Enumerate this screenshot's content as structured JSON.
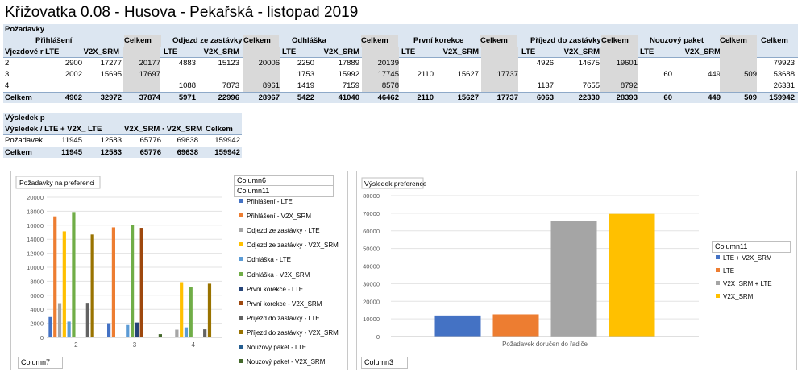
{
  "title": "Křižovatka 0.08 - Husova - Pekařská - listopad 2019",
  "pivot1": {
    "caption": "Požadavky",
    "groups": [
      "Přihlášení",
      "Celkem",
      "Odjezd ze zastávky",
      "Celkem",
      "Odhláška",
      "Celkem",
      "První korekce",
      "Celkem",
      "Příjezd do zastávky",
      "Celkem",
      "Nouzový paket",
      "Celkem",
      "Celkem"
    ],
    "subheaders": [
      "Vjezdové r LTE",
      "V2X_SRM",
      "LTE",
      "V2X_SRM",
      "LTE",
      "V2X_SRM",
      "LTE",
      "V2X_SRM",
      "LTE",
      "V2X_SRM",
      "LTE",
      "V2X_SRM"
    ],
    "rows": [
      [
        "2",
        "2900",
        "17277",
        "20177",
        "4883",
        "15123",
        "20006",
        "2250",
        "17889",
        "20139",
        "",
        "",
        "",
        "4926",
        "14675",
        "19601",
        "",
        "",
        "",
        "79923"
      ],
      [
        "3",
        "2002",
        "15695",
        "17697",
        "",
        "",
        "",
        "1753",
        "15992",
        "17745",
        "2110",
        "15627",
        "17737",
        "",
        "",
        "",
        "60",
        "449",
        "509",
        "53688"
      ],
      [
        "4",
        "",
        "",
        "",
        "1088",
        "7873",
        "8961",
        "1419",
        "7159",
        "8578",
        "",
        "",
        "",
        "1137",
        "7655",
        "8792",
        "",
        "",
        "",
        "26331"
      ]
    ],
    "total": [
      "Celkem",
      "4902",
      "32972",
      "37874",
      "5971",
      "22996",
      "28967",
      "5422",
      "41040",
      "46462",
      "2110",
      "15627",
      "17737",
      "6063",
      "22330",
      "28393",
      "60",
      "449",
      "509",
      "159942"
    ]
  },
  "pivot2": {
    "caption": "Výsledek p",
    "headers": [
      "Výsledek / LTE + V2X_ LTE",
      "V2X_SRM · V2X_SRM",
      "Celkem"
    ],
    "rows": [
      [
        "Požadavek",
        "11945",
        "12583",
        "65776",
        "69638",
        "159942"
      ]
    ],
    "total": [
      "Celkem",
      "11945",
      "12583",
      "65776",
      "69638",
      "159942"
    ]
  },
  "slicers": {
    "c6": "Column6",
    "c11a": "Column11",
    "c7": "Column7",
    "c11b": "Column11",
    "c3": "Column3"
  },
  "chart_data": [
    {
      "type": "bar",
      "title": "Požadavky na preferenci",
      "categories": [
        "2",
        "3",
        "4"
      ],
      "ylim": [
        0,
        20000
      ],
      "yticks": [
        0,
        2000,
        4000,
        6000,
        8000,
        10000,
        12000,
        14000,
        16000,
        18000,
        20000
      ],
      "grid": true,
      "legend": "right",
      "series": [
        {
          "name": "Přihlášení - LTE",
          "color": "#4472c4",
          "values": [
            2900,
            2002,
            0
          ]
        },
        {
          "name": "Přihlášení - V2X_SRM",
          "color": "#ed7d31",
          "values": [
            17277,
            15695,
            0
          ]
        },
        {
          "name": "Odjezd ze zastávky - LTE",
          "color": "#a5a5a5",
          "values": [
            4883,
            0,
            1088
          ]
        },
        {
          "name": "Odjezd ze zastávky - V2X_SRM",
          "color": "#ffc000",
          "values": [
            15123,
            0,
            7873
          ]
        },
        {
          "name": "Odhláška - LTE",
          "color": "#5b9bd5",
          "values": [
            2250,
            1753,
            1419
          ]
        },
        {
          "name": "Odhláška - V2X_SRM",
          "color": "#70ad47",
          "values": [
            17889,
            15992,
            7159
          ]
        },
        {
          "name": "První korekce - LTE",
          "color": "#264478",
          "values": [
            0,
            2110,
            0
          ]
        },
        {
          "name": "První korekce - V2X_SRM",
          "color": "#9e480e",
          "values": [
            0,
            15627,
            0
          ]
        },
        {
          "name": "Příjezd do zastávky - LTE",
          "color": "#636363",
          "values": [
            4926,
            0,
            1137
          ]
        },
        {
          "name": "Příjezd do zastávky - V2X_SRM",
          "color": "#997300",
          "values": [
            14675,
            0,
            7655
          ]
        },
        {
          "name": "Nouzový paket - LTE",
          "color": "#255e91",
          "values": [
            0,
            60,
            0
          ]
        },
        {
          "name": "Nouzový paket - V2X_SRM",
          "color": "#43682b",
          "values": [
            0,
            449,
            0
          ]
        }
      ]
    },
    {
      "type": "bar",
      "title": "Výsledek preference",
      "categories": [
        "Požadavek doručen do řadiče"
      ],
      "ylim": [
        0,
        80000
      ],
      "yticks": [
        0,
        10000,
        20000,
        30000,
        40000,
        50000,
        60000,
        70000,
        80000
      ],
      "grid": true,
      "legend": "right",
      "legend_title": "Column11",
      "series": [
        {
          "name": "LTE + V2X_SRM",
          "color": "#4472c4",
          "values": [
            11945
          ]
        },
        {
          "name": "LTE",
          "color": "#ed7d31",
          "values": [
            12583
          ]
        },
        {
          "name": "V2X_SRM + LTE",
          "color": "#a5a5a5",
          "values": [
            65776
          ]
        },
        {
          "name": "V2X_SRM",
          "color": "#ffc000",
          "values": [
            69638
          ]
        }
      ]
    }
  ]
}
